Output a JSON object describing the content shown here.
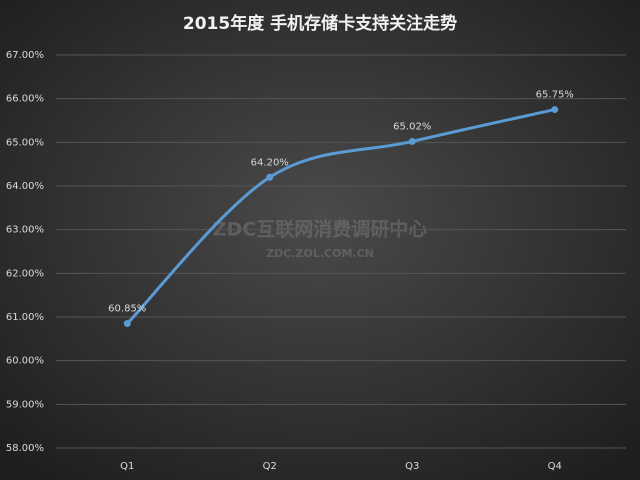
{
  "chart_data": {
    "type": "line",
    "title": "2015年度 手机存储卡支持关注走势",
    "categories": [
      "Q1",
      "Q2",
      "Q3",
      "Q4"
    ],
    "values": [
      60.85,
      64.2,
      65.02,
      65.75
    ],
    "value_labels": [
      "60.85%",
      "64.20%",
      "65.02%",
      "65.75%"
    ],
    "color": "#5b9bd5",
    "ylim": [
      58,
      67
    ],
    "yticks": [
      {
        "value": 58,
        "label": "58.00%"
      },
      {
        "value": 59,
        "label": "59.00%"
      },
      {
        "value": 60,
        "label": "60.00%"
      },
      {
        "value": 61,
        "label": "61.00%"
      },
      {
        "value": 62,
        "label": "62.00%"
      },
      {
        "value": 63,
        "label": "63.00%"
      },
      {
        "value": 64,
        "label": "64.00%"
      },
      {
        "value": 65,
        "label": "65.00%"
      },
      {
        "value": 66,
        "label": "66.00%"
      },
      {
        "value": 67,
        "label": "67.00%"
      }
    ],
    "grid": true,
    "smooth": true,
    "watermark": [
      "ZDC互联网消费调研中心",
      "ZDC.ZOL.COM.CN"
    ]
  }
}
